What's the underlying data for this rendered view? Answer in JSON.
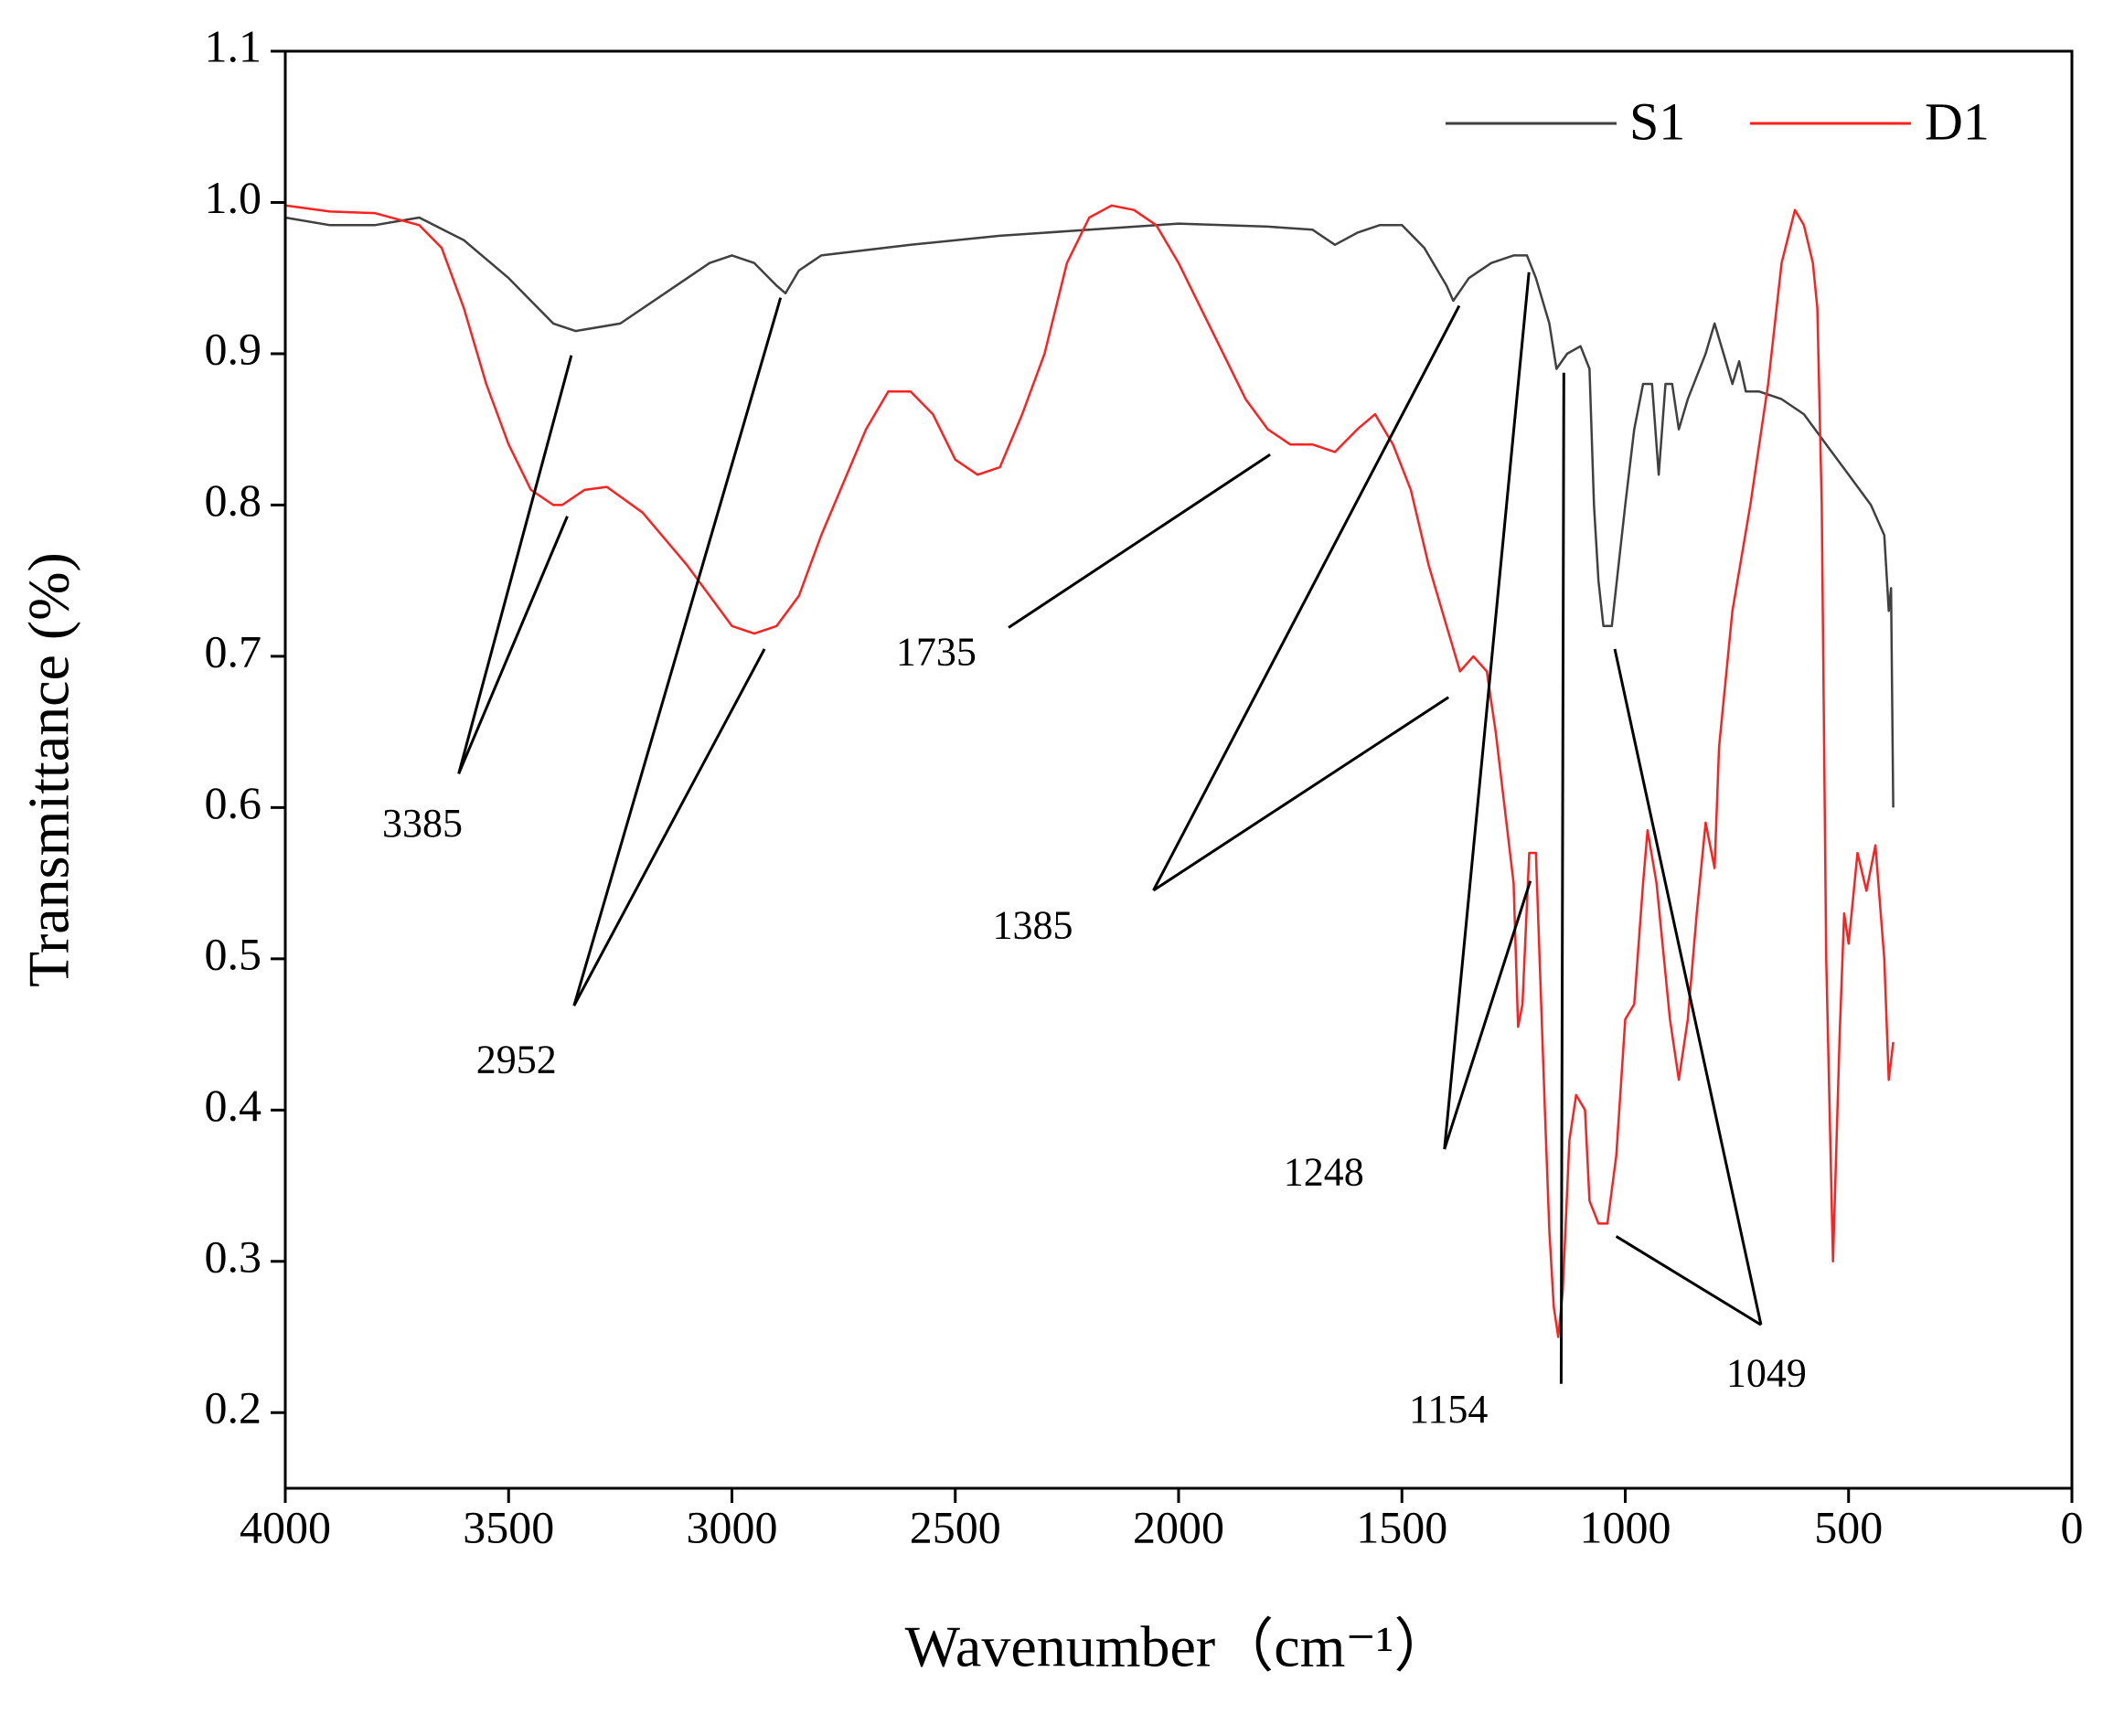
{
  "chart_data": {
    "type": "line",
    "x_label": "Wavenumber（cm⁻¹）",
    "y_label": "Transmittance (%)",
    "xlim": [
      4000,
      0
    ],
    "ylim": [
      0.15,
      1.1
    ],
    "xticks": [
      4000,
      3500,
      3000,
      2500,
      2000,
      1500,
      1000,
      500,
      0
    ],
    "yticks": [
      0.2,
      0.3,
      0.4,
      0.5,
      0.6,
      0.7,
      0.8,
      0.9,
      {
        "value": 1,
        "label": "1.0"
      },
      1.1
    ],
    "legend": "upper right",
    "series": [
      {
        "name": "S1",
        "color": "#404040",
        "x": [
          4000,
          3900,
          3800,
          3700,
          3600,
          3500,
          3400,
          3350,
          3250,
          3150,
          3050,
          3000,
          2950,
          2900,
          2880,
          2850,
          2800,
          2600,
          2400,
          2200,
          2000,
          1900,
          1800,
          1700,
          1650,
          1600,
          1550,
          1500,
          1450,
          1400,
          1385,
          1350,
          1300,
          1250,
          1220,
          1200,
          1170,
          1154,
          1130,
          1100,
          1080,
          1070,
          1060,
          1049,
          1030,
          1000,
          980,
          960,
          940,
          925,
          910,
          895,
          880,
          860,
          820,
          800,
          780,
          760,
          745,
          730,
          700,
          650,
          600,
          550,
          500,
          450,
          420,
          410,
          405,
          400
        ],
        "values": [
          0.99,
          0.985,
          0.985,
          0.99,
          0.975,
          0.95,
          0.92,
          0.915,
          0.92,
          0.94,
          0.96,
          0.965,
          0.96,
          0.945,
          0.94,
          0.955,
          0.965,
          0.972,
          0.978,
          0.982,
          0.986,
          0.985,
          0.984,
          0.982,
          0.972,
          0.98,
          0.985,
          0.985,
          0.97,
          0.945,
          0.935,
          0.95,
          0.96,
          0.965,
          0.965,
          0.95,
          0.92,
          0.89,
          0.9,
          0.905,
          0.89,
          0.8,
          0.75,
          0.72,
          0.72,
          0.8,
          0.85,
          0.88,
          0.88,
          0.82,
          0.88,
          0.88,
          0.85,
          0.87,
          0.9,
          0.92,
          0.9,
          0.88,
          0.895,
          0.875,
          0.875,
          0.87,
          0.86,
          0.84,
          0.82,
          0.8,
          0.78,
          0.73,
          0.745,
          0.6
        ]
      },
      {
        "name": "D1",
        "color": "#ff2020",
        "x": [
          4000,
          3900,
          3800,
          3700,
          3650,
          3600,
          3550,
          3500,
          3450,
          3400,
          3380,
          3330,
          3280,
          3200,
          3100,
          3000,
          2950,
          2900,
          2850,
          2800,
          2700,
          2650,
          2600,
          2550,
          2500,
          2450,
          2400,
          2350,
          2300,
          2250,
          2200,
          2150,
          2100,
          2050,
          2000,
          1950,
          1900,
          1850,
          1800,
          1750,
          1700,
          1650,
          1600,
          1560,
          1520,
          1480,
          1440,
          1400,
          1370,
          1340,
          1310,
          1290,
          1270,
          1250,
          1240,
          1230,
          1215,
          1200,
          1180,
          1170,
          1160,
          1150,
          1140,
          1125,
          1110,
          1090,
          1080,
          1060,
          1040,
          1020,
          1000,
          980,
          960,
          950,
          930,
          900,
          880,
          860,
          840,
          820,
          800,
          790,
          760,
          720,
          680,
          650,
          620,
          600,
          580,
          570,
          560,
          550,
          535,
          520,
          510,
          500,
          480,
          460,
          440,
          420,
          410,
          400
        ],
        "values": [
          0.998,
          0.994,
          0.993,
          0.985,
          0.97,
          0.93,
          0.88,
          0.84,
          0.81,
          0.8,
          0.8,
          0.81,
          0.812,
          0.795,
          0.76,
          0.72,
          0.715,
          0.72,
          0.74,
          0.78,
          0.85,
          0.875,
          0.875,
          0.86,
          0.83,
          0.82,
          0.825,
          0.86,
          0.9,
          0.96,
          0.99,
          0.998,
          0.995,
          0.985,
          0.96,
          0.93,
          0.9,
          0.87,
          0.85,
          0.84,
          0.84,
          0.835,
          0.85,
          0.86,
          0.84,
          0.81,
          0.76,
          0.72,
          0.69,
          0.7,
          0.69,
          0.65,
          0.6,
          0.55,
          0.455,
          0.47,
          0.57,
          0.57,
          0.4,
          0.32,
          0.27,
          0.25,
          0.28,
          0.38,
          0.41,
          0.4,
          0.34,
          0.325,
          0.325,
          0.37,
          0.46,
          0.47,
          0.55,
          0.585,
          0.55,
          0.46,
          0.42,
          0.46,
          0.53,
          0.59,
          0.56,
          0.64,
          0.73,
          0.8,
          0.88,
          0.96,
          0.995,
          0.985,
          0.96,
          0.93,
          0.8,
          0.5,
          0.3,
          0.45,
          0.53,
          0.51,
          0.57,
          0.545,
          0.575,
          0.5,
          0.42,
          0.445
        ]
      }
    ],
    "annotations": [
      "3385",
      "2952",
      "1735",
      "1385",
      "1248",
      "1154",
      "1049"
    ]
  }
}
